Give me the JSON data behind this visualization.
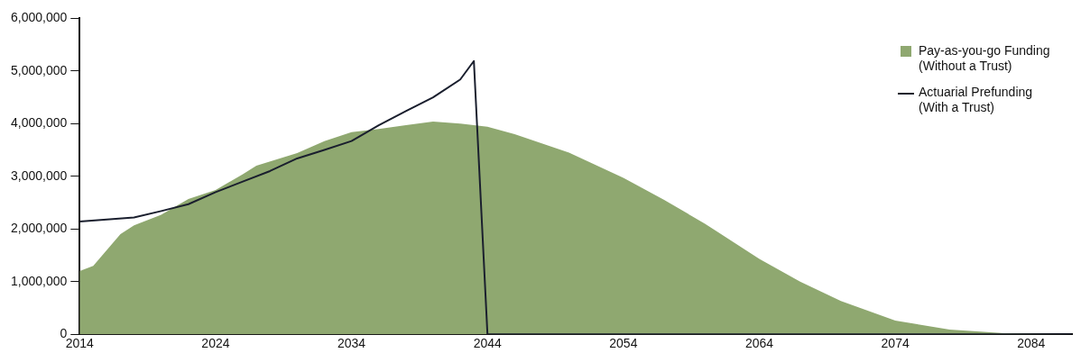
{
  "chart_data": {
    "type": "area",
    "xlim": [
      2014,
      2087
    ],
    "xticks": [
      2014,
      2024,
      2034,
      2044,
      2054,
      2064,
      2074,
      2084
    ],
    "ylim": [
      0,
      6000000
    ],
    "yticks": [
      0,
      {
        "value": 1000000,
        "label": "1,000,000"
      },
      {
        "value": 2000000,
        "label": "2,000,000"
      },
      {
        "value": 3000000,
        "label": "3,000,000"
      },
      {
        "value": 4000000,
        "label": "4,000,000"
      },
      {
        "value": 5000000,
        "label": "5,000,000"
      },
      {
        "value": 6000000,
        "label": "6,000,000"
      }
    ],
    "grid": false,
    "legend": "top right",
    "series": [
      {
        "name": "Pay-as-you-go Funding (Without a Trust)",
        "color": "#8fa870",
        "x": [
          2014,
          2015,
          2017,
          2018,
          2020,
          2022,
          2024,
          2026,
          2027,
          2030,
          2032,
          2034,
          2036,
          2038,
          2040,
          2042,
          2044,
          2046,
          2050,
          2054,
          2057,
          2060,
          2064,
          2067,
          2070,
          2074,
          2078,
          2082,
          2087
        ],
        "values": [
          1200000,
          1300000,
          1900000,
          2070000,
          2270000,
          2570000,
          2740000,
          3040000,
          3200000,
          3440000,
          3670000,
          3840000,
          3900000,
          3970000,
          4040000,
          4000000,
          3940000,
          3800000,
          3450000,
          2970000,
          2550000,
          2100000,
          1430000,
          1000000,
          630000,
          260000,
          90000,
          20000,
          0
        ]
      },
      {
        "name": "Actuarial Prefunding (With a Trust)",
        "type": "line",
        "color": "#1a1f2e",
        "x": [
          2014,
          2018,
          2020,
          2022,
          2024,
          2026,
          2028,
          2030,
          2032,
          2034,
          2036,
          2038,
          2040,
          2042,
          2043,
          2044,
          2087
        ],
        "values": [
          2140000,
          2220000,
          2340000,
          2470000,
          2700000,
          2900000,
          3100000,
          3340000,
          3500000,
          3670000,
          3970000,
          4240000,
          4500000,
          4840000,
          5190000,
          0,
          0
        ]
      }
    ]
  }
}
